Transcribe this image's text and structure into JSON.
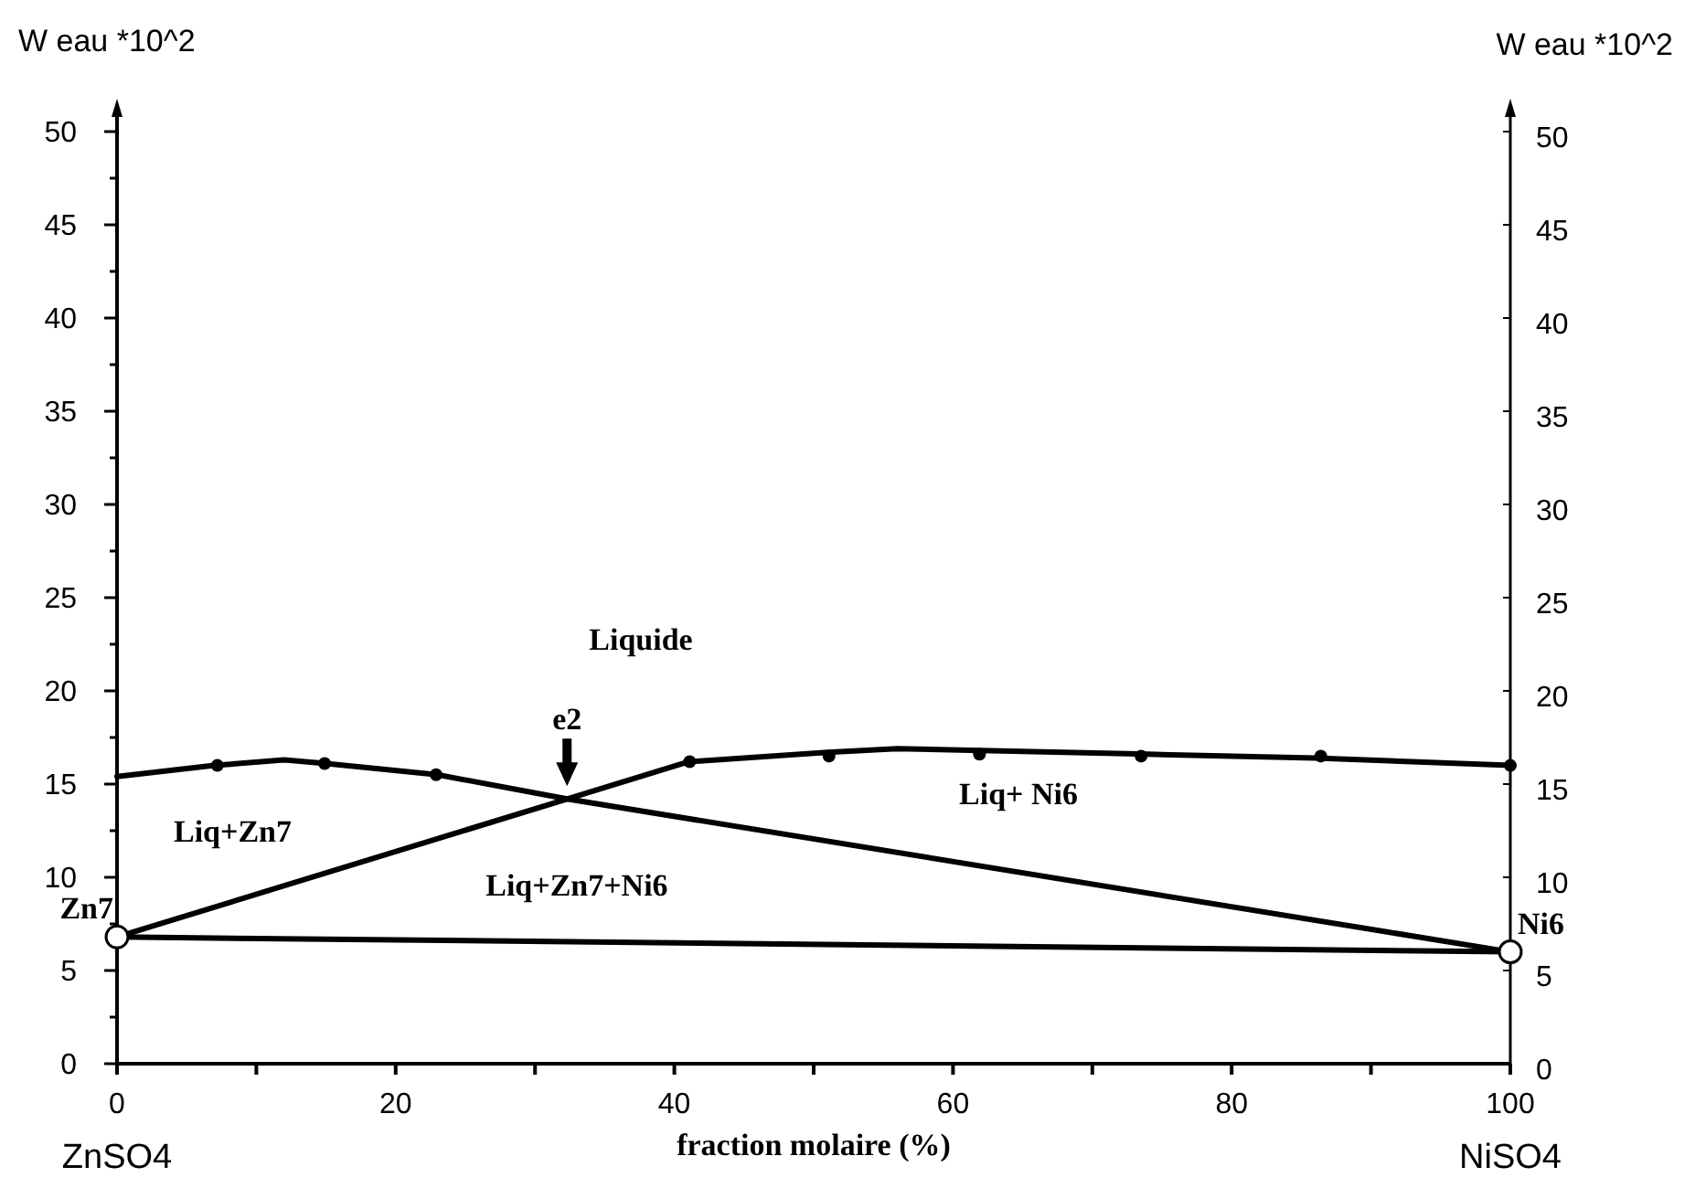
{
  "chart_data": {
    "type": "line",
    "xlabel": "fraction molaire (%)",
    "ylabel": "W eau *10^2",
    "y2label": "W eau *10^2",
    "xlim": [
      0,
      100
    ],
    "xticks": [
      0,
      {
        "value": 10,
        "label": null
      },
      20,
      {
        "value": 30,
        "label": null
      },
      40,
      {
        "value": 50,
        "label": null
      },
      60,
      {
        "value": 70,
        "label": null
      },
      80,
      {
        "value": 90,
        "label": null
      },
      100
    ],
    "ylim": [
      0,
      50
    ],
    "yticks": [
      0,
      {
        "value": 2.5,
        "label": null
      },
      5,
      {
        "value": 7.5,
        "label": null
      },
      10,
      {
        "value": 12.5,
        "label": null
      },
      15,
      {
        "value": 17.5,
        "label": null
      },
      20,
      {
        "value": 22.5,
        "label": null
      },
      25,
      {
        "value": 27.5,
        "label": null
      },
      30,
      {
        "value": 32.5,
        "label": null
      },
      35,
      {
        "value": 37.5,
        "label": null
      },
      40,
      {
        "value": 42.5,
        "label": null
      },
      45,
      {
        "value": 47.5,
        "label": null
      },
      50
    ],
    "y2lim": [
      0,
      50
    ],
    "y2ticks": [
      0,
      5,
      10,
      15,
      20,
      25,
      30,
      35,
      40,
      45,
      50
    ],
    "grid": false,
    "line_style": "solid",
    "series": [
      {
        "color": "#000000",
        "x": [
          0,
          7,
          12,
          15,
          23,
          32.3,
          100
        ],
        "values": [
          15.4,
          16.0,
          16.3,
          16.1,
          15.5,
          14.2,
          6.0
        ]
      },
      {
        "color": "#000000",
        "x": [
          0,
          32.3,
          41,
          51,
          56,
          62,
          74,
          86,
          100
        ],
        "values": [
          6.8,
          14.2,
          16.2,
          16.7,
          16.9,
          16.8,
          16.6,
          16.4,
          16.0
        ]
      },
      {
        "color": "#000000",
        "x": [
          0,
          100
        ],
        "values": [
          6.8,
          6.0
        ]
      },
      {
        "type": "scatter",
        "color": "#000000",
        "marker": "circle",
        "x": [
          7.2,
          14.9,
          22.9,
          41.1,
          51.1,
          61.9,
          73.5,
          86.4,
          100
        ],
        "values": [
          16.0,
          16.1,
          15.5,
          16.2,
          16.5,
          16.6,
          16.5,
          16.5,
          16.0
        ]
      },
      {
        "type": "scatter",
        "color": "#ffffff",
        "marker": "circle",
        "x": [
          0,
          100
        ],
        "values": [
          6.8,
          6.0
        ]
      }
    ],
    "annotations": [
      "Liquide",
      "Liq+Zn7",
      "Liq+Zn7+Ni6",
      "Liq+ Ni6",
      "ZnSO4",
      "NiSO4",
      {
        "text": "e2",
        "x": 32.3,
        "y": 14.2
      },
      {
        "text": "Zn7",
        "x": 0,
        "y": 6.8
      },
      {
        "text": "Ni6",
        "x": 100,
        "y": 6.0
      }
    ]
  }
}
